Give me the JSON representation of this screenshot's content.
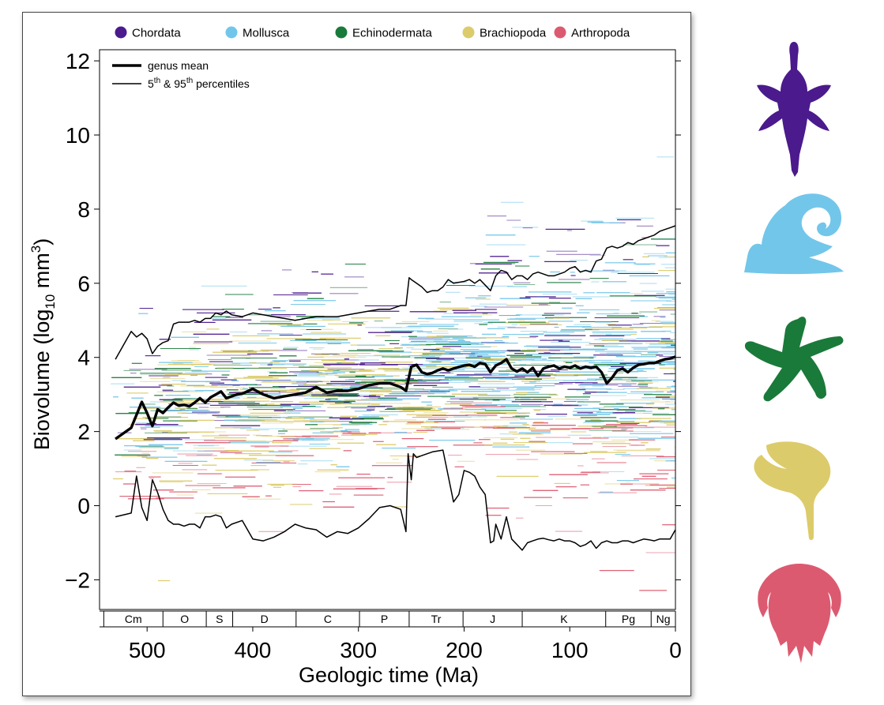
{
  "chart_data": {
    "type": "line",
    "title": "",
    "xlabel": "Geologic time (Ma)",
    "ylabel_main": "Biovolume (log",
    "ylabel_sub": "10",
    "ylabel_unit": " mm",
    "ylabel_sup": "3",
    "ylabel_close": ")",
    "xlim": [
      545,
      0
    ],
    "ylim": [
      -2.8,
      12.3
    ],
    "x_ticks": [
      500,
      400,
      300,
      200,
      100,
      0
    ],
    "y_ticks": [
      12,
      10,
      8,
      6,
      4,
      2,
      0,
      -2
    ],
    "y_tick_labels": [
      "12",
      "10",
      "8",
      "6",
      "4",
      "2",
      "0",
      "−2"
    ],
    "periods": [
      {
        "label": "Cm",
        "start": 541,
        "end": 485
      },
      {
        "label": "O",
        "start": 485,
        "end": 444
      },
      {
        "label": "S",
        "start": 444,
        "end": 419
      },
      {
        "label": "D",
        "start": 419,
        "end": 359
      },
      {
        "label": "C",
        "start": 359,
        "end": 299
      },
      {
        "label": "P",
        "start": 299,
        "end": 252
      },
      {
        "label": "Tr",
        "start": 252,
        "end": 201
      },
      {
        "label": "J",
        "start": 201,
        "end": 145
      },
      {
        "label": "K",
        "start": 145,
        "end": 66
      },
      {
        "label": "Pg",
        "start": 66,
        "end": 23
      },
      {
        "label": "Ng",
        "start": 23,
        "end": 0
      }
    ],
    "legend_top": [
      {
        "name": "Chordata",
        "color": "#4b1a8c"
      },
      {
        "name": "Mollusca",
        "color": "#72c6ea"
      },
      {
        "name": "Echinodermata",
        "color": "#1a7a3a"
      },
      {
        "name": "Brachiopoda",
        "color": "#dccb6a"
      },
      {
        "name": "Arthropoda",
        "color": "#dc5a70"
      }
    ],
    "legend_lines": {
      "mean_label": "genus mean",
      "pct_prefix": "5",
      "pct_sup1": "th",
      "pct_mid": " & 95",
      "pct_sup2": "th",
      "pct_suffix": " percentiles"
    },
    "series": [
      {
        "name": "genus mean",
        "x": [
          530,
          515,
          505,
          500,
          495,
          490,
          485,
          480,
          475,
          470,
          465,
          460,
          455,
          450,
          445,
          440,
          435,
          430,
          425,
          420,
          415,
          410,
          400,
          390,
          380,
          370,
          360,
          350,
          340,
          330,
          320,
          310,
          300,
          290,
          280,
          270,
          260,
          255,
          250,
          245,
          240,
          235,
          230,
          225,
          220,
          215,
          210,
          200,
          195,
          190,
          185,
          180,
          175,
          170,
          165,
          160,
          155,
          150,
          145,
          140,
          135,
          130,
          125,
          120,
          115,
          110,
          105,
          100,
          95,
          90,
          85,
          80,
          75,
          70,
          65,
          60,
          55,
          50,
          45,
          40,
          35,
          30,
          25,
          20,
          15,
          10,
          5,
          0
        ],
        "y": [
          1.8,
          2.1,
          2.8,
          2.5,
          2.15,
          2.6,
          2.5,
          2.65,
          2.78,
          2.7,
          2.72,
          2.68,
          2.78,
          2.9,
          2.78,
          2.92,
          3.0,
          3.08,
          2.9,
          2.95,
          3.0,
          3.02,
          3.15,
          3.0,
          2.9,
          2.95,
          3.0,
          3.05,
          3.2,
          3.05,
          3.1,
          3.1,
          3.15,
          3.25,
          3.3,
          3.3,
          3.2,
          3.1,
          3.75,
          3.8,
          3.6,
          3.55,
          3.58,
          3.65,
          3.7,
          3.65,
          3.7,
          3.78,
          3.8,
          3.75,
          3.85,
          3.82,
          3.6,
          3.78,
          3.85,
          3.95,
          3.7,
          3.62,
          3.7,
          3.6,
          3.72,
          3.5,
          3.7,
          3.75,
          3.78,
          3.7,
          3.75,
          3.72,
          3.78,
          3.7,
          3.75,
          3.72,
          3.75,
          3.6,
          3.3,
          3.45,
          3.65,
          3.7,
          3.6,
          3.72,
          3.8,
          3.82,
          3.85,
          3.85,
          3.9,
          3.95,
          3.97,
          4.02
        ]
      },
      {
        "name": "95th percentile",
        "x": [
          530,
          515,
          510,
          505,
          500,
          495,
          490,
          485,
          480,
          475,
          470,
          465,
          460,
          455,
          450,
          445,
          440,
          435,
          430,
          425,
          420,
          410,
          400,
          390,
          380,
          370,
          360,
          350,
          340,
          330,
          320,
          310,
          300,
          290,
          280,
          270,
          260,
          255,
          252,
          250,
          245,
          240,
          235,
          230,
          225,
          220,
          215,
          210,
          200,
          195,
          190,
          185,
          180,
          175,
          170,
          165,
          160,
          155,
          150,
          145,
          140,
          135,
          130,
          125,
          120,
          115,
          110,
          105,
          100,
          95,
          90,
          85,
          80,
          75,
          70,
          65,
          60,
          55,
          50,
          45,
          40,
          35,
          30,
          25,
          20,
          15,
          10,
          5,
          0
        ],
        "y": [
          3.95,
          4.7,
          4.55,
          4.65,
          4.5,
          4.1,
          4.3,
          4.4,
          4.45,
          4.9,
          4.95,
          4.95,
          4.95,
          5.0,
          4.95,
          5.05,
          5.05,
          5.2,
          5.15,
          5.25,
          5.15,
          5.1,
          5.2,
          5.15,
          5.1,
          5.05,
          5.0,
          5.05,
          5.1,
          5.1,
          5.1,
          5.15,
          5.2,
          5.25,
          5.3,
          5.3,
          5.4,
          5.4,
          6.15,
          6.1,
          6.0,
          5.9,
          5.75,
          5.8,
          5.8,
          5.9,
          6.1,
          6.0,
          6.05,
          6.1,
          6.0,
          6.1,
          5.95,
          5.8,
          6.2,
          6.35,
          6.3,
          6.1,
          6.2,
          6.2,
          6.1,
          6.25,
          6.3,
          6.25,
          6.2,
          6.2,
          6.25,
          6.3,
          6.4,
          6.45,
          6.3,
          6.35,
          6.3,
          6.6,
          6.65,
          6.95,
          7.0,
          6.95,
          7.0,
          7.1,
          7.05,
          7.15,
          7.2,
          7.25,
          7.3,
          7.4,
          7.45,
          7.5,
          7.55
        ]
      },
      {
        "name": "5th percentile",
        "x": [
          530,
          515,
          510,
          505,
          500,
          495,
          490,
          485,
          480,
          475,
          470,
          465,
          460,
          455,
          450,
          445,
          440,
          435,
          430,
          425,
          420,
          410,
          400,
          390,
          380,
          370,
          360,
          350,
          340,
          330,
          320,
          310,
          300,
          290,
          280,
          270,
          260,
          255,
          253,
          250,
          248,
          245,
          240,
          230,
          220,
          210,
          205,
          200,
          195,
          190,
          185,
          180,
          175,
          172,
          170,
          165,
          160,
          155,
          150,
          145,
          140,
          135,
          130,
          125,
          120,
          115,
          110,
          105,
          100,
          95,
          90,
          85,
          80,
          75,
          70,
          65,
          60,
          55,
          50,
          45,
          40,
          35,
          30,
          25,
          20,
          15,
          10,
          5,
          0
        ],
        "y": [
          -0.3,
          -0.2,
          0.8,
          -0.05,
          -0.4,
          0.7,
          0.35,
          -0.1,
          -0.4,
          -0.5,
          -0.5,
          -0.55,
          -0.5,
          -0.5,
          -0.6,
          -0.3,
          -0.3,
          -0.25,
          -0.3,
          -0.6,
          -0.5,
          -0.4,
          -0.9,
          -0.95,
          -0.85,
          -0.7,
          -0.5,
          -0.6,
          -0.65,
          -0.85,
          -0.7,
          -0.75,
          -0.6,
          -0.35,
          -0.05,
          0.0,
          -0.1,
          -0.7,
          1.4,
          0.7,
          1.4,
          1.3,
          1.35,
          1.45,
          1.5,
          0.1,
          0.3,
          0.95,
          0.9,
          0.8,
          0.5,
          0.3,
          -1.0,
          -0.95,
          -0.5,
          -0.9,
          -0.3,
          -0.9,
          -1.05,
          -1.2,
          -1.0,
          -0.95,
          -0.9,
          -0.88,
          -0.92,
          -0.95,
          -0.9,
          -0.95,
          -0.95,
          -1.0,
          -1.1,
          -1.05,
          -0.95,
          -1.15,
          -1.0,
          -0.95,
          -1.0,
          -1.0,
          -0.95,
          -0.95,
          -1.0,
          -0.95,
          -0.9,
          -0.92,
          -0.95,
          -0.9,
          -0.9,
          -0.9,
          -0.65
        ]
      }
    ]
  },
  "silhouettes": [
    {
      "icon": "plesiosaur-icon",
      "color": "#4b1a8c"
    },
    {
      "icon": "snail-icon",
      "color": "#72c6ea"
    },
    {
      "icon": "starfish-icon",
      "color": "#1a7a3a"
    },
    {
      "icon": "brachiopod-icon",
      "color": "#dccb6a"
    },
    {
      "icon": "trilobite-icon",
      "color": "#dc5a70"
    }
  ]
}
